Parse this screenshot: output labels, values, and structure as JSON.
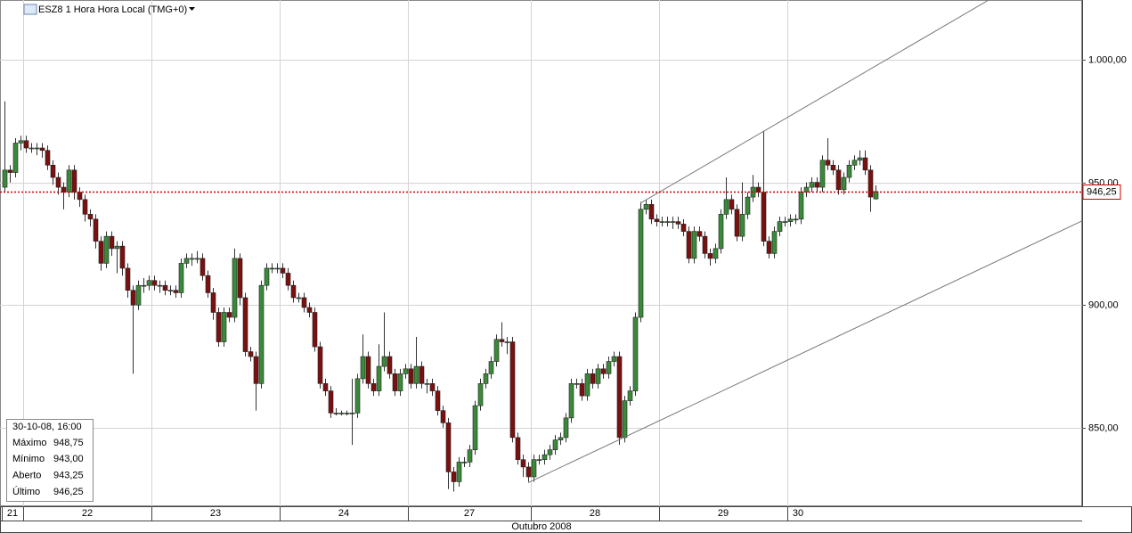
{
  "chart_data": {
    "type": "candlestick",
    "title": "ESZ8 1 Hora Hora Local (TMG+0)",
    "x_axis_label": "Outubro 2008",
    "up_color": "#3a8a3a",
    "down_color": "#7a1010",
    "ylim": [
      818,
      1024.3
    ],
    "yticks": [
      {
        "value": 850,
        "label": "850,00"
      },
      {
        "value": 900,
        "label": "900,00"
      },
      {
        "value": 950,
        "label": "950,00"
      },
      {
        "value": 1000,
        "label": "1.000,00"
      }
    ],
    "xlim": [
      -0.83,
      201.67
    ],
    "xticks": [
      {
        "value": -0.5,
        "label": "21"
      },
      {
        "value": 3.5,
        "label": "22"
      },
      {
        "value": 27.5,
        "label": "23"
      },
      {
        "value": 51.5,
        "label": "24"
      },
      {
        "value": 75.5,
        "label": "27"
      },
      {
        "value": 98.5,
        "label": "28"
      },
      {
        "value": 122.5,
        "label": "29"
      },
      {
        "value": 146.5,
        "label": "30"
      }
    ],
    "grid": true,
    "last_price": {
      "value": 946.25,
      "label": "946,25",
      "color": "#cc0000"
    },
    "trendlines": [
      {
        "x": [
          119,
          184.2
        ],
        "y": [
          941.5,
          1024.3
        ]
      },
      {
        "x": [
          98,
          201.67
        ],
        "y": [
          827.6,
          934.3
        ]
      }
    ],
    "ohlc": [
      [
        948,
        983,
        946,
        955
      ],
      [
        955,
        957,
        950,
        954
      ],
      [
        954,
        968,
        952,
        966
      ],
      [
        966,
        969,
        963,
        967
      ],
      [
        967,
        969,
        962,
        964
      ],
      [
        964,
        966,
        962,
        964
      ],
      [
        964,
        966,
        961,
        964
      ],
      [
        964,
        966,
        960,
        963
      ],
      [
        963,
        965,
        955,
        957
      ],
      [
        957,
        959,
        949,
        952
      ],
      [
        952,
        954,
        945,
        948
      ],
      [
        948,
        950,
        939,
        946
      ],
      [
        946,
        957,
        944,
        955
      ],
      [
        955,
        957,
        943,
        946
      ],
      [
        946,
        948,
        940,
        943
      ],
      [
        943,
        945,
        934,
        937
      ],
      [
        937,
        939,
        932,
        935
      ],
      [
        935,
        937,
        923,
        926
      ],
      [
        926,
        928,
        914,
        917
      ],
      [
        917,
        930,
        915,
        928
      ],
      [
        928,
        930,
        920,
        923
      ],
      [
        923,
        926,
        913,
        924
      ],
      [
        924,
        926,
        912,
        915
      ],
      [
        915,
        917,
        903,
        906
      ],
      [
        906,
        908,
        872,
        900
      ],
      [
        900,
        910,
        898,
        908
      ],
      [
        908,
        911,
        905,
        908
      ],
      [
        908,
        912,
        906,
        910
      ],
      [
        910,
        912,
        906,
        908
      ],
      [
        908,
        910,
        905,
        908
      ],
      [
        908,
        910,
        904,
        906
      ],
      [
        906,
        908,
        904,
        906
      ],
      [
        906,
        908,
        903,
        905
      ],
      [
        905,
        919,
        903,
        917
      ],
      [
        917,
        921,
        915,
        919
      ],
      [
        919,
        921,
        916,
        919
      ],
      [
        919,
        922,
        917,
        919
      ],
      [
        919,
        921,
        910,
        912
      ],
      [
        912,
        914,
        903,
        905
      ],
      [
        905,
        907,
        894,
        897
      ],
      [
        897,
        899,
        883,
        885
      ],
      [
        885,
        899,
        883,
        897
      ],
      [
        897,
        899,
        893,
        895
      ],
      [
        895,
        923,
        893,
        919
      ],
      [
        919,
        921,
        900,
        903
      ],
      [
        903,
        905,
        879,
        881
      ],
      [
        881,
        883,
        877,
        879
      ],
      [
        879,
        881,
        857,
        868
      ],
      [
        868,
        910,
        866,
        908
      ],
      [
        908,
        917,
        906,
        915
      ],
      [
        915,
        917,
        913,
        915
      ],
      [
        915,
        917,
        913,
        915
      ],
      [
        915,
        917,
        911,
        913
      ],
      [
        913,
        915,
        906,
        908
      ],
      [
        908,
        910,
        901,
        903
      ],
      [
        903,
        905,
        901,
        903
      ],
      [
        903,
        905,
        897,
        899
      ],
      [
        899,
        901,
        895,
        897
      ],
      [
        897,
        899,
        881,
        883
      ],
      [
        883,
        885,
        866,
        868
      ],
      [
        868,
        870,
        863,
        865
      ],
      [
        865,
        867,
        854,
        856
      ],
      [
        856,
        858,
        855,
        856
      ],
      [
        856,
        857,
        855,
        856
      ],
      [
        856,
        857,
        855,
        856
      ],
      [
        856,
        870,
        843,
        856
      ],
      [
        856,
        872,
        854,
        870
      ],
      [
        870,
        888,
        868,
        879
      ],
      [
        879,
        881,
        866,
        868
      ],
      [
        868,
        870,
        863,
        865
      ],
      [
        865,
        884,
        863,
        875
      ],
      [
        875,
        897,
        873,
        879
      ],
      [
        879,
        881,
        870,
        872
      ],
      [
        872,
        874,
        863,
        865
      ],
      [
        865,
        874,
        863,
        872
      ],
      [
        872,
        876,
        870,
        874
      ],
      [
        874,
        876,
        866,
        868
      ],
      [
        868,
        887,
        866,
        875
      ],
      [
        875,
        877,
        866,
        868
      ],
      [
        868,
        870,
        864,
        868
      ],
      [
        868,
        870,
        863,
        865
      ],
      [
        865,
        867,
        855,
        857
      ],
      [
        857,
        859,
        850,
        852
      ],
      [
        852,
        854,
        825,
        832
      ],
      [
        832,
        834,
        824,
        828
      ],
      [
        828,
        838,
        826,
        836
      ],
      [
        836,
        838,
        834,
        836
      ],
      [
        836,
        843,
        834,
        841
      ],
      [
        841,
        861,
        839,
        859
      ],
      [
        859,
        870,
        857,
        868
      ],
      [
        868,
        874,
        866,
        872
      ],
      [
        872,
        879,
        870,
        877
      ],
      [
        877,
        888,
        875,
        886
      ],
      [
        886,
        893,
        883,
        885
      ],
      [
        885,
        887,
        880,
        885
      ],
      [
        885,
        887,
        844,
        846
      ],
      [
        846,
        848,
        835,
        837
      ],
      [
        837,
        839,
        830,
        834
      ],
      [
        834,
        836,
        828,
        830
      ],
      [
        830,
        839,
        828,
        837
      ],
      [
        837,
        839,
        835,
        837
      ],
      [
        837,
        841,
        835,
        839
      ],
      [
        839,
        843,
        837,
        841
      ],
      [
        841,
        847,
        839,
        845
      ],
      [
        845,
        848,
        843,
        846
      ],
      [
        846,
        856,
        844,
        854
      ],
      [
        854,
        870,
        852,
        868
      ],
      [
        868,
        870,
        866,
        868
      ],
      [
        868,
        870,
        861,
        863
      ],
      [
        863,
        874,
        861,
        872
      ],
      [
        872,
        874,
        866,
        868
      ],
      [
        868,
        876,
        866,
        874
      ],
      [
        874,
        876,
        870,
        872
      ],
      [
        872,
        879,
        870,
        877
      ],
      [
        877,
        881,
        875,
        879
      ],
      [
        879,
        881,
        843,
        846
      ],
      [
        846,
        863,
        844,
        861
      ],
      [
        861,
        867,
        859,
        865
      ],
      [
        865,
        897,
        863,
        895
      ],
      [
        895,
        942,
        893,
        939
      ],
      [
        939,
        943,
        937,
        941
      ],
      [
        941,
        943,
        933,
        935
      ],
      [
        935,
        937,
        932,
        934
      ],
      [
        934,
        936,
        932,
        934
      ],
      [
        934,
        936,
        932,
        934
      ],
      [
        934,
        936,
        931,
        934
      ],
      [
        934,
        936,
        931,
        933
      ],
      [
        933,
        935,
        928,
        930
      ],
      [
        930,
        932,
        917,
        919
      ],
      [
        919,
        932,
        917,
        930
      ],
      [
        930,
        932,
        926,
        928
      ],
      [
        928,
        930,
        919,
        921
      ],
      [
        921,
        923,
        916,
        919
      ],
      [
        919,
        925,
        917,
        923
      ],
      [
        923,
        939,
        921,
        937
      ],
      [
        937,
        952,
        935,
        943
      ],
      [
        943,
        945,
        937,
        939
      ],
      [
        939,
        941,
        926,
        928
      ],
      [
        928,
        950,
        926,
        937
      ],
      [
        937,
        946,
        935,
        944
      ],
      [
        944,
        953,
        942,
        948
      ],
      [
        948,
        950,
        944,
        946
      ],
      [
        946,
        971,
        924,
        926
      ],
      [
        926,
        928,
        919,
        921
      ],
      [
        921,
        932,
        919,
        930
      ],
      [
        930,
        936,
        928,
        934
      ],
      [
        934,
        936,
        932,
        934
      ],
      [
        934,
        937,
        932,
        935
      ],
      [
        935,
        937,
        933,
        935
      ],
      [
        935,
        948,
        933,
        946
      ],
      [
        946,
        950,
        944,
        948
      ],
      [
        948,
        952,
        946,
        950
      ],
      [
        950,
        952,
        946,
        948
      ],
      [
        948,
        961,
        946,
        959
      ],
      [
        959,
        968,
        955,
        957
      ],
      [
        957,
        959,
        953,
        955
      ],
      [
        955,
        957,
        945,
        947
      ],
      [
        947,
        954,
        945,
        952
      ],
      [
        952,
        959,
        950,
        957
      ],
      [
        957,
        961,
        955,
        959
      ],
      [
        959,
        963,
        957,
        960
      ],
      [
        960,
        963,
        953,
        955
      ],
      [
        955,
        957,
        938,
        944
      ],
      [
        943.25,
        948.75,
        943,
        946.25
      ]
    ],
    "info": {
      "date": "30-10-08, 16:00",
      "rows": [
        [
          "Máximo",
          "948,75"
        ],
        [
          "Mínimo",
          "943,00"
        ],
        [
          "Aberto",
          "943,25"
        ],
        [
          "Último",
          "946,25"
        ]
      ]
    }
  }
}
